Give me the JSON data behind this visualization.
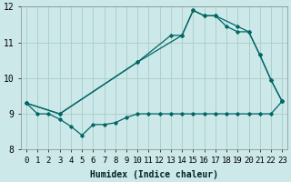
{
  "xlabel": "Humidex (Indice chaleur)",
  "background_color": "#cce8e8",
  "grid_color": "#aacccc",
  "line_color": "#006666",
  "xlim": [
    -0.5,
    23.5
  ],
  "ylim": [
    8,
    12
  ],
  "yticks": [
    8,
    9,
    10,
    11,
    12
  ],
  "xticks": [
    0,
    1,
    2,
    3,
    4,
    5,
    6,
    7,
    8,
    9,
    10,
    11,
    12,
    13,
    14,
    15,
    16,
    17,
    18,
    19,
    20,
    21,
    22,
    23
  ],
  "line1_x": [
    0,
    1,
    2,
    3,
    4,
    5,
    6,
    7,
    8,
    9,
    10,
    11,
    12,
    13,
    14,
    15,
    16,
    17,
    18,
    19,
    20,
    21,
    22,
    23
  ],
  "line1_y": [
    9.3,
    9.0,
    9.0,
    8.85,
    8.65,
    8.4,
    8.7,
    8.7,
    8.75,
    8.9,
    9.0,
    9.0,
    9.0,
    9.0,
    9.0,
    9.0,
    9.0,
    9.0,
    9.0,
    9.0,
    9.0,
    9.0,
    9.0,
    9.35
  ],
  "line2_x": [
    0,
    3,
    10,
    13,
    14,
    15,
    16,
    17,
    18,
    19,
    20,
    21,
    22,
    23
  ],
  "line2_y": [
    9.3,
    9.0,
    10.45,
    11.2,
    11.2,
    11.9,
    11.75,
    11.75,
    11.45,
    11.3,
    11.3,
    10.65,
    9.95,
    9.35
  ],
  "line3_x": [
    0,
    3,
    10,
    14,
    15,
    16,
    17,
    19,
    20,
    21,
    22,
    23
  ],
  "line3_y": [
    9.3,
    9.0,
    10.45,
    11.2,
    11.9,
    11.75,
    11.75,
    11.45,
    11.3,
    10.65,
    9.95,
    9.35
  ],
  "font_size_xlabel": 7,
  "font_size_ticks": 6.5
}
